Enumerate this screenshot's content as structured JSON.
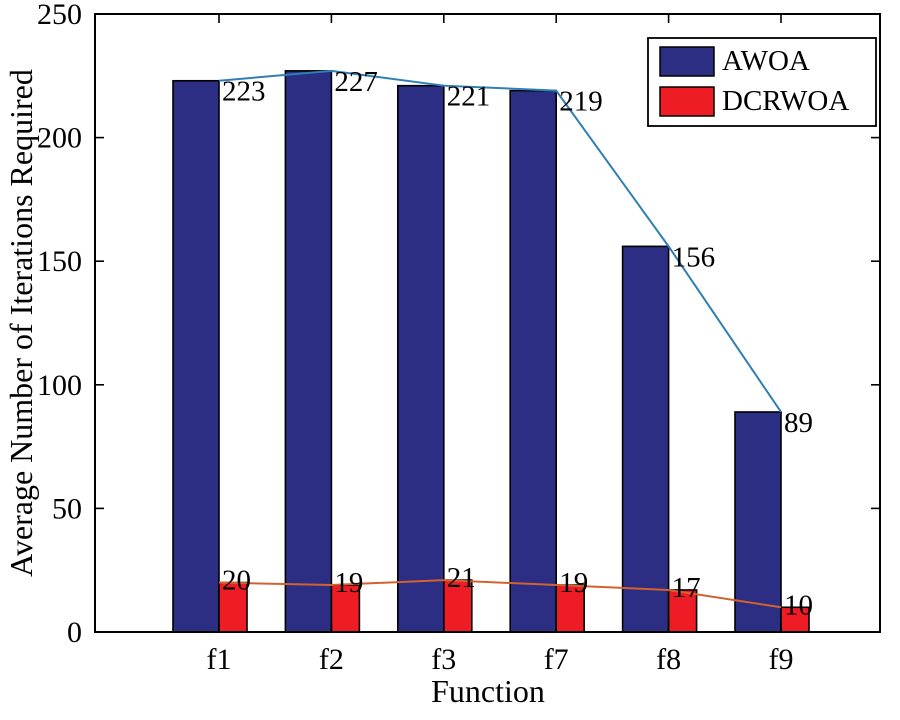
{
  "chart_data": {
    "type": "bar",
    "title": "",
    "xlabel": "Function",
    "ylabel": "Average Number of Iterations Required",
    "categories": [
      "f1",
      "f2",
      "f3",
      "f7",
      "f8",
      "f9"
    ],
    "series": [
      {
        "name": "AWOA",
        "color": "#2b2e83",
        "line_color": "#2e7fb4",
        "values": [
          223,
          227,
          221,
          219,
          156,
          89
        ]
      },
      {
        "name": "DCRWOA",
        "color": "#ee1c25",
        "line_color": "#d2622e",
        "values": [
          20,
          19,
          21,
          19,
          17,
          10
        ]
      }
    ],
    "ylim": [
      0,
      250
    ],
    "yticks": [
      0,
      50,
      100,
      150,
      200,
      250
    ],
    "legend_position": "top-right",
    "grid": false
  },
  "colors": {
    "background": "#ffffff",
    "axis": "#000000"
  }
}
